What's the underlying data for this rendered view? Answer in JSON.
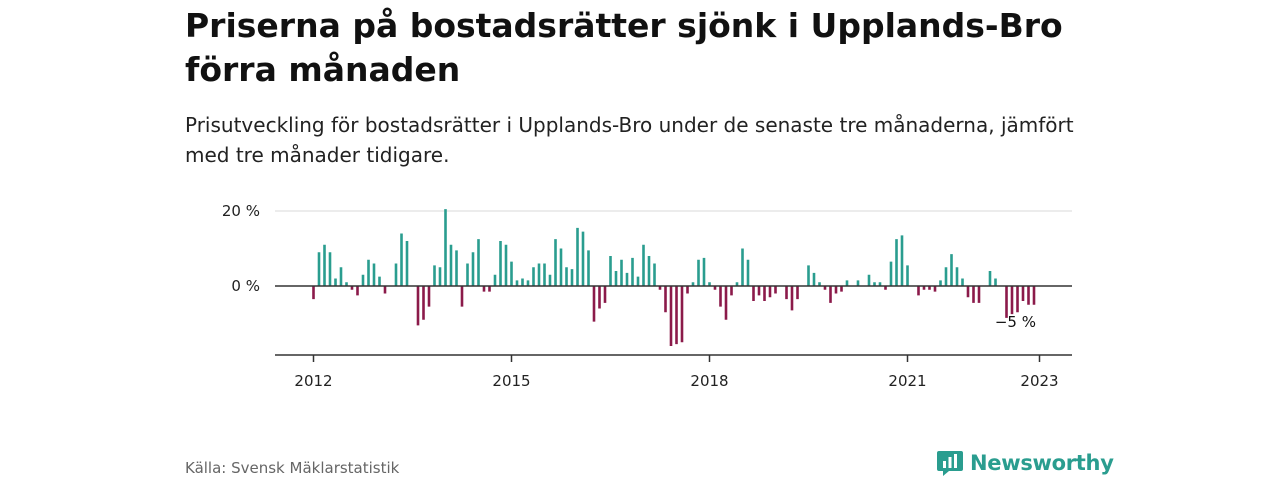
{
  "header": {
    "title": "Priserna på bostadsrätter sjönk i Upplands-Bro förra månaden",
    "subtitle": "Prisutveckling för bostadsrätter i Upplands-Bro under de senaste tre månaderna, jämfört med tre månader tidigare."
  },
  "footer": {
    "source": "Källa: Svensk Mäklarstatistik",
    "brand": "Newsworthy"
  },
  "colors": {
    "positive": "#2a9d8f",
    "negative": "#8b1a4a",
    "axis": "#333333",
    "grid": "#d9d9d9",
    "brand": "#2a9d8f"
  },
  "icons": {
    "brand_logo": "newsworthy-logo-icon"
  },
  "chart_data": {
    "type": "bar",
    "title": "Priserna på bostadsrätter sjönk i Upplands-Bro förra månaden",
    "subtitle": "Prisutveckling för bostadsrätter i Upplands-Bro under de senaste tre månaderna, jämfört med tre månader tidigare.",
    "xlabel": "",
    "ylabel": "",
    "start_month": "2012-01",
    "x_ticks": [
      "2012",
      "2015",
      "2018",
      "2021",
      "2023"
    ],
    "y_ticks": [
      0,
      20
    ],
    "y_tick_labels": [
      "0 %",
      "20 %"
    ],
    "ylim": [
      -19,
      21
    ],
    "grid": true,
    "annotation": {
      "label": "−5 %",
      "value": -5
    },
    "series": [
      {
        "name": "Prisutveckling",
        "values": [
          -3.5,
          9,
          11,
          9,
          2,
          5,
          1,
          -1,
          -2.5,
          3,
          7,
          6,
          2.5,
          -2,
          0,
          6,
          14,
          12,
          0,
          -10.5,
          -9,
          -5.5,
          5.5,
          5,
          20.5,
          11,
          9.5,
          -5.5,
          6,
          9,
          12.5,
          -1.5,
          -1.5,
          3,
          12,
          11,
          6.5,
          1.5,
          2,
          1.5,
          5,
          6,
          6,
          3,
          12.5,
          10,
          5,
          4.5,
          15.5,
          14.5,
          9.5,
          -9.5,
          -6,
          -4.5,
          8,
          4,
          7,
          3.5,
          7.5,
          2.5,
          11,
          8,
          6,
          -1,
          -7,
          -16,
          -15.5,
          -15,
          -2,
          1,
          7,
          7.5,
          1,
          -1,
          -5.5,
          -9,
          -2.5,
          1,
          10,
          7,
          -4,
          -2.5,
          -4,
          -3,
          -2,
          0,
          -3.5,
          -6.5,
          -3.5,
          0,
          5.5,
          3.5,
          1,
          -1,
          -4.5,
          -2,
          -1.5,
          1.5,
          0,
          1.5,
          0,
          3,
          1,
          1,
          -1,
          6.5,
          12.5,
          13.5,
          5.5,
          0,
          -2.5,
          -1,
          -1,
          -1.5,
          1.5,
          5,
          8.5,
          5,
          2,
          -3,
          -4.5,
          -4.5,
          0,
          4,
          2,
          0,
          -8.5,
          -7.5,
          -7,
          -4,
          -5,
          -5
        ]
      }
    ]
  }
}
